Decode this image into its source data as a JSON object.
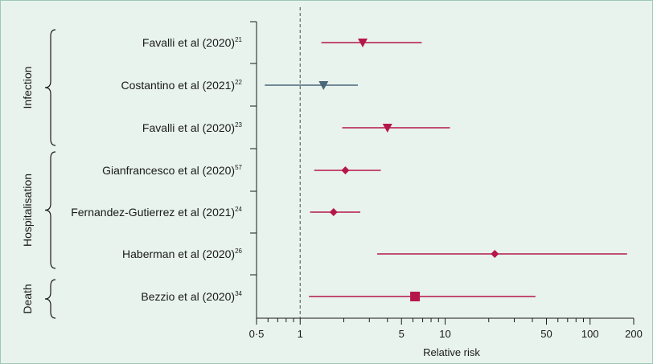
{
  "chart_data": {
    "type": "forest",
    "xlabel": "Relative risk",
    "xscale": "log",
    "xlim": [
      0.5,
      200
    ],
    "xticks": [
      {
        "value": 0.5,
        "label": "0·5"
      },
      {
        "value": 1,
        "label": "1"
      },
      {
        "value": 5,
        "label": "5"
      },
      {
        "value": 10,
        "label": "10"
      },
      {
        "value": 50,
        "label": "50"
      },
      {
        "value": 100,
        "label": "100"
      },
      {
        "value": 200,
        "label": "200"
      }
    ],
    "minor_ticks": [
      0.6,
      0.7,
      0.8,
      0.9,
      2,
      3,
      4,
      6,
      7,
      8,
      9,
      20,
      30,
      40,
      60,
      70,
      80,
      90
    ],
    "reference_line": 1,
    "groups": [
      {
        "name": "Infection",
        "rows": [
          0,
          1,
          2
        ]
      },
      {
        "name": "Hospitalisation",
        "rows": [
          3,
          4,
          5
        ]
      },
      {
        "name": "Death",
        "rows": [
          6
        ]
      }
    ],
    "studies": [
      {
        "label": "Favalli et al (2020)",
        "ref": "21",
        "estimate": 2.7,
        "lower": 1.4,
        "upper": 6.9,
        "marker": "triangle-down",
        "color": "#b5174b"
      },
      {
        "label": "Costantino et al (2021)",
        "ref": "22",
        "estimate": 1.45,
        "lower": 0.57,
        "upper": 2.5,
        "marker": "triangle-down",
        "color": "#4a6878"
      },
      {
        "label": "Favalli et al (2020)",
        "ref": "23",
        "estimate": 4.0,
        "lower": 1.95,
        "upper": 10.8,
        "marker": "triangle-down",
        "color": "#b5174b"
      },
      {
        "label": "Gianfrancesco et al (2020)",
        "ref": "57",
        "estimate": 2.05,
        "lower": 1.25,
        "upper": 3.6,
        "marker": "diamond",
        "color": "#b5174b"
      },
      {
        "label": "Fernandez-Gutierrez et al (2021)",
        "ref": "24",
        "estimate": 1.7,
        "lower": 1.17,
        "upper": 2.6,
        "marker": "diamond",
        "color": "#b5174b"
      },
      {
        "label": "Haberman et al (2020)",
        "ref": "26",
        "estimate": 22.0,
        "lower": 3.4,
        "upper": 180,
        "marker": "diamond",
        "color": "#b5174b"
      },
      {
        "label": "Bezzio et al (2020)",
        "ref": "34",
        "estimate": 6.2,
        "lower": 1.15,
        "upper": 42,
        "marker": "square",
        "color": "#b5174b"
      }
    ]
  }
}
